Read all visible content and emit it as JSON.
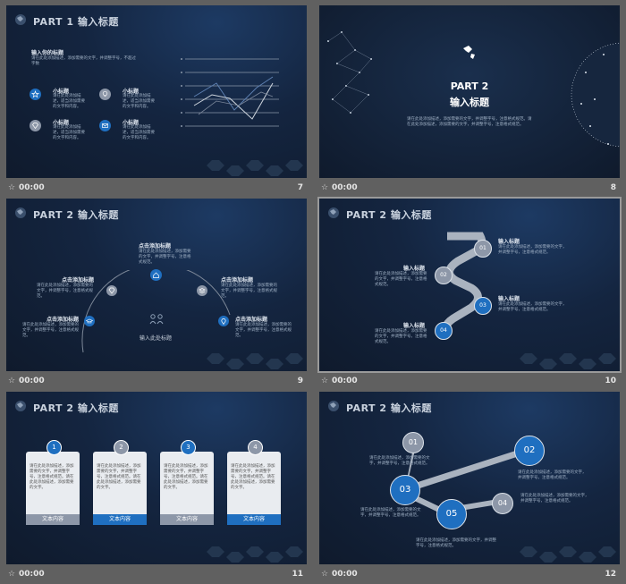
{
  "common": {
    "time": "00:00",
    "star_icon": "star-icon"
  },
  "s7": {
    "title": "PART 1 输入标题",
    "number": "7",
    "heading": "输入你的标题",
    "intro": "请在此处添加描述，添加需要的文字，并调整字号，不超过字数",
    "items": [
      {
        "label": "小标题",
        "text": "请在此处添加描述，适当添加需要的文字和内容。",
        "icon": "star-icon"
      },
      {
        "label": "小标题",
        "text": "请在此处添加描述，适当添加需要的文字和内容。",
        "icon": "bulb-icon"
      },
      {
        "label": "小标题",
        "text": "请在此处添加描述，适当添加需要的文字和内容。",
        "icon": "diamond-icon"
      },
      {
        "label": "小标题",
        "text": "请在此处添加描述，适当添加需要的文字和内容。",
        "icon": "mail-icon"
      }
    ]
  },
  "s8": {
    "number": "8",
    "part": "PART 2",
    "title": "输入标题",
    "text": "请在此处添加描述，添加需要的文字，并调整字号，注意格式规范。请在此处添加描述，添加需要的文字，并调整字号，注意格式规范。"
  },
  "s9": {
    "title": "PART 2 输入标题",
    "number": "9",
    "center_label": "输入此处标题",
    "points": [
      {
        "label": "点击添加标题",
        "text": "请在此处添加描述，添加需要的文字，并调整字号，注意格式规范。"
      },
      {
        "label": "点击添加标题",
        "text": "请在此处添加描述，添加需要的文字，并调整字号，注意格式规范。"
      },
      {
        "label": "点击添加标题",
        "text": "请在此处添加描述，添加需要的文字，并调整字号，注意格式规范。"
      },
      {
        "label": "点击添加标题",
        "text": "请在此处添加描述，添加需要的文字，并调整字号，注意格式规范。"
      },
      {
        "label": "点击添加标题",
        "text": "请在此处添加描述，添加需要的文字，并调整字号，注意格式规范。"
      }
    ]
  },
  "s10": {
    "title": "PART 2 输入标题",
    "number": "10",
    "steps": [
      {
        "num": "01",
        "label": "输入标题",
        "text": "请在此处添加描述，添加需要的文字，并调整字号，注意格式规范。"
      },
      {
        "num": "02",
        "label": "输入标题",
        "text": "请在此处添加描述，添加需要的文字，并调整字号，注意格式规范。"
      },
      {
        "num": "03",
        "label": "输入标题",
        "text": "请在此处添加描述，添加需要的文字，并调整字号，注意格式规范。"
      },
      {
        "num": "04",
        "label": "输入标题",
        "text": "请在此处添加描述，添加需要的文字，并调整字号，注意格式规范。"
      }
    ]
  },
  "s11": {
    "title": "PART 2 输入标题",
    "number": "11",
    "cards": [
      {
        "num": "1",
        "text": "请在此处添加描述，添加需要的文字，并调整字号，注意格式规范。请在此处添加描述，添加需要的文字。",
        "footer": "文本内容"
      },
      {
        "num": "2",
        "text": "请在此处添加描述，添加需要的文字，并调整字号，注意格式规范。请在此处添加描述，添加需要的文字。",
        "footer": "文本内容"
      },
      {
        "num": "3",
        "text": "请在此处添加描述，添加需要的文字，并调整字号，注意格式规范。请在此处添加描述，添加需要的文字。",
        "footer": "文本内容"
      },
      {
        "num": "4",
        "text": "请在此处添加描述，添加需要的文字，并调整字号，注意格式规范。请在此处添加描述，添加需要的文字。",
        "footer": "文本内容"
      }
    ]
  },
  "s12": {
    "title": "PART 2 输入标题",
    "number": "12",
    "nodes": [
      {
        "num": "01",
        "text": "请在此处添加描述，添加需要的文字，并调整字号，注意格式规范。"
      },
      {
        "num": "02",
        "text": "请在此处添加描述，添加需要的文字，并调整字号，注意格式规范。"
      },
      {
        "num": "03",
        "text": "请在此处添加描述，添加需要的文字，并调整字号，注意格式规范。"
      },
      {
        "num": "04",
        "text": "请在此处添加描述，添加需要的文字，并调整字号，注意格式规范。"
      },
      {
        "num": "05",
        "text": "请在此处添加描述，添加需要的文字，并调整字号，注意格式规范。"
      }
    ]
  },
  "colors": {
    "blue": "#1f6fc0",
    "grey": "#8d97a8",
    "bg_dark": "#142540"
  }
}
